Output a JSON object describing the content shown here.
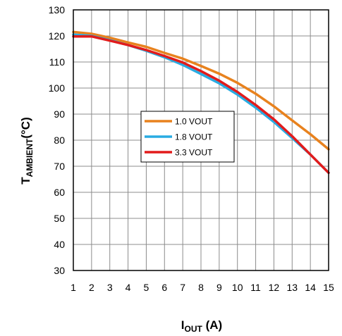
{
  "chart_data": {
    "type": "line",
    "xlabel": {
      "main": "I",
      "sub": "OUT",
      "rest": " (A)"
    },
    "ylabel": {
      "main": "T",
      "sub": "AMBIENT",
      "rest": "(°C)"
    },
    "xlim": [
      1,
      15
    ],
    "ylim": [
      30,
      130
    ],
    "x_ticks": [
      1,
      2,
      3,
      4,
      5,
      6,
      7,
      8,
      9,
      10,
      11,
      12,
      13,
      14,
      15
    ],
    "y_ticks": [
      30,
      40,
      50,
      60,
      70,
      80,
      90,
      100,
      110,
      120,
      130
    ],
    "grid": true,
    "legend_position": "center",
    "x": [
      1,
      2,
      3,
      4,
      5,
      6,
      7,
      8,
      9,
      10,
      11,
      12,
      13,
      14,
      15
    ],
    "series": [
      {
        "name": "1.0 VOUT",
        "color": "#E8821E",
        "values": [
          121.5,
          120.8,
          119.3,
          117.5,
          115.8,
          113.5,
          111.3,
          108.5,
          105.5,
          102.0,
          97.8,
          93.0,
          87.6,
          82.3,
          76.5
        ]
      },
      {
        "name": "1.8 VOUT",
        "color": "#29ABE2",
        "values": [
          120.5,
          120.0,
          118.4,
          116.5,
          114.3,
          111.8,
          108.9,
          105.4,
          101.8,
          97.5,
          92.5,
          87.0,
          80.8,
          74.5,
          67.5
        ]
      },
      {
        "name": "3.3 VOUT",
        "color": "#E21B1B",
        "values": [
          119.8,
          119.8,
          118.2,
          116.5,
          114.6,
          112.3,
          109.8,
          106.5,
          102.8,
          98.5,
          93.5,
          88.0,
          81.5,
          74.5,
          67.5
        ]
      }
    ]
  }
}
